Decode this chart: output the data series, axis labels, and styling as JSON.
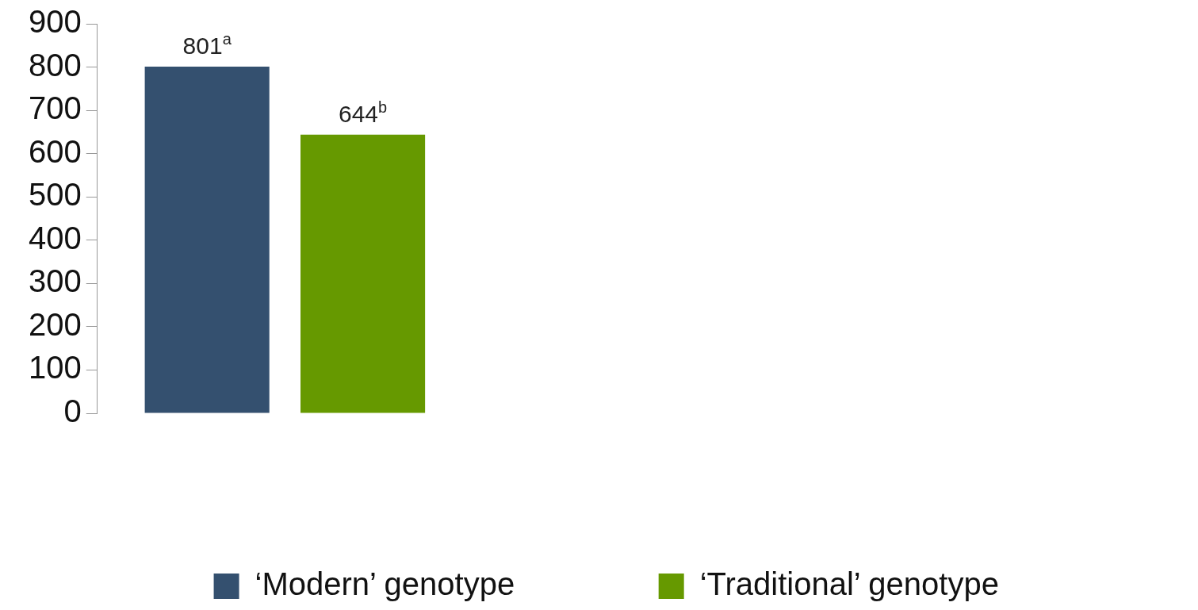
{
  "chart_data": {
    "type": "bar",
    "categories": [
      null
    ],
    "series": [
      {
        "name": "‘Modern’ genotype",
        "color": "#34506f",
        "values": [
          801
        ],
        "value_labels": [
          "801$^{a}$"
        ]
      },
      {
        "name": "‘Traditional’ genotype",
        "color": "#669900",
        "values": [
          644
        ],
        "value_labels": [
          "644$^{b}$"
        ]
      }
    ],
    "ylim": [
      0,
      900
    ],
    "yticks": [
      0,
      100,
      200,
      300,
      400,
      500,
      600,
      700,
      800,
      900
    ],
    "grid": false,
    "legend": "bottom"
  }
}
